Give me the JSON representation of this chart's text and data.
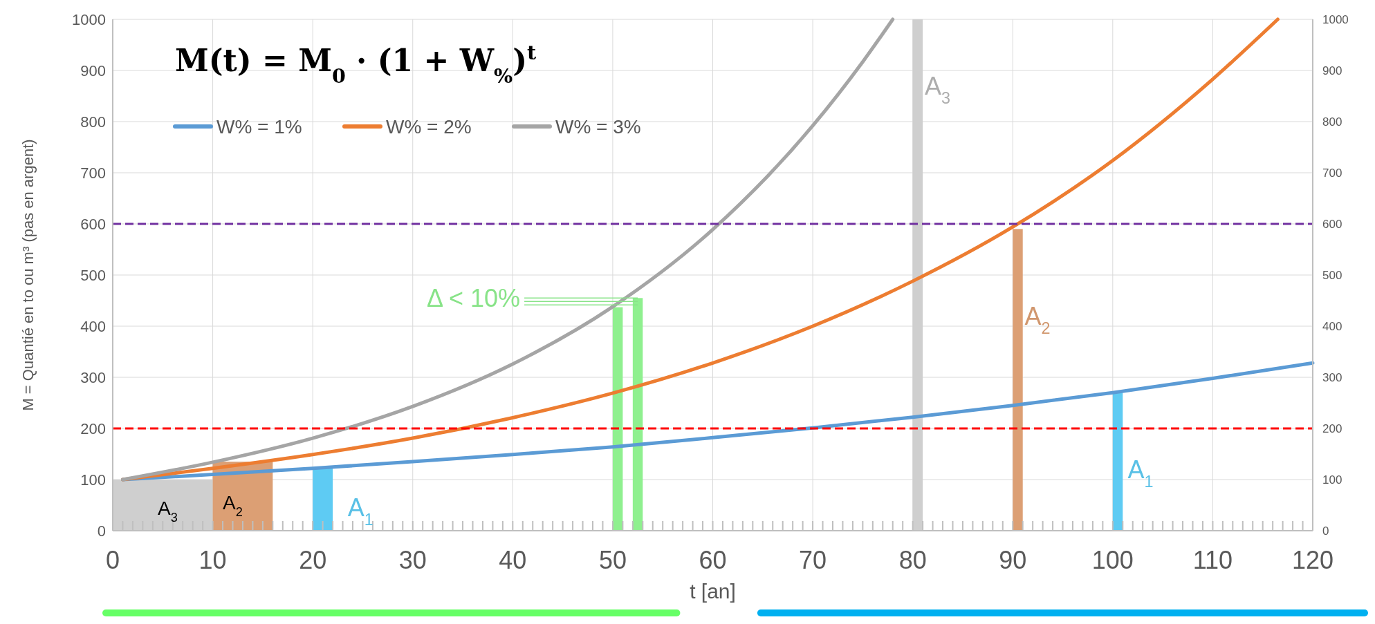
{
  "chart_data": {
    "type": "line",
    "xlabel": "t [an]",
    "ylabel": "M = Quantié en to ou m³ (pas en argent)",
    "xlim": [
      0,
      120
    ],
    "ylim": [
      0,
      1000
    ],
    "y2lim": [
      0,
      1000
    ],
    "xticks": [
      0,
      10,
      20,
      30,
      40,
      50,
      60,
      70,
      80,
      90,
      100,
      110,
      120,
      {
        "value": 1,
        "label": null
      },
      {
        "value": 2,
        "label": null
      },
      {
        "value": 3,
        "label": null
      },
      {
        "value": 4,
        "label": null
      },
      {
        "value": 5,
        "label": null
      },
      {
        "value": 6,
        "label": null
      },
      {
        "value": 7,
        "label": null
      },
      {
        "value": 8,
        "label": null
      },
      {
        "value": 9,
        "label": null
      },
      {
        "value": 11,
        "label": null
      },
      {
        "value": 12,
        "label": null
      },
      {
        "value": 13,
        "label": null
      },
      {
        "value": 14,
        "label": null
      },
      {
        "value": 15,
        "label": null
      },
      {
        "value": 16,
        "label": null
      },
      {
        "value": 17,
        "label": null
      },
      {
        "value": 18,
        "label": null
      },
      {
        "value": 19,
        "label": null
      },
      {
        "value": 21,
        "label": null
      },
      {
        "value": 22,
        "label": null
      },
      {
        "value": 23,
        "label": null
      },
      {
        "value": 24,
        "label": null
      },
      {
        "value": 25,
        "label": null
      },
      {
        "value": 26,
        "label": null
      },
      {
        "value": 27,
        "label": null
      },
      {
        "value": 28,
        "label": null
      },
      {
        "value": 29,
        "label": null
      },
      {
        "value": 31,
        "label": null
      },
      {
        "value": 32,
        "label": null
      },
      {
        "value": 33,
        "label": null
      },
      {
        "value": 34,
        "label": null
      },
      {
        "value": 35,
        "label": null
      },
      {
        "value": 36,
        "label": null
      },
      {
        "value": 37,
        "label": null
      },
      {
        "value": 38,
        "label": null
      },
      {
        "value": 39,
        "label": null
      },
      {
        "value": 41,
        "label": null
      },
      {
        "value": 42,
        "label": null
      },
      {
        "value": 43,
        "label": null
      },
      {
        "value": 44,
        "label": null
      },
      {
        "value": 45,
        "label": null
      },
      {
        "value": 46,
        "label": null
      },
      {
        "value": 47,
        "label": null
      },
      {
        "value": 48,
        "label": null
      },
      {
        "value": 49,
        "label": null
      },
      {
        "value": 51,
        "label": null
      },
      {
        "value": 52,
        "label": null
      },
      {
        "value": 53,
        "label": null
      },
      {
        "value": 54,
        "label": null
      },
      {
        "value": 55,
        "label": null
      },
      {
        "value": 56,
        "label": null
      },
      {
        "value": 57,
        "label": null
      },
      {
        "value": 58,
        "label": null
      },
      {
        "value": 59,
        "label": null
      },
      {
        "value": 61,
        "label": null
      },
      {
        "value": 62,
        "label": null
      },
      {
        "value": 63,
        "label": null
      },
      {
        "value": 64,
        "label": null
      },
      {
        "value": 65,
        "label": null
      },
      {
        "value": 66,
        "label": null
      },
      {
        "value": 67,
        "label": null
      },
      {
        "value": 68,
        "label": null
      },
      {
        "value": 69,
        "label": null
      },
      {
        "value": 71,
        "label": null
      },
      {
        "value": 72,
        "label": null
      },
      {
        "value": 73,
        "label": null
      },
      {
        "value": 74,
        "label": null
      },
      {
        "value": 75,
        "label": null
      },
      {
        "value": 76,
        "label": null
      },
      {
        "value": 77,
        "label": null
      },
      {
        "value": 78,
        "label": null
      },
      {
        "value": 79,
        "label": null
      },
      {
        "value": 81,
        "label": null
      },
      {
        "value": 82,
        "label": null
      },
      {
        "value": 83,
        "label": null
      },
      {
        "value": 84,
        "label": null
      },
      {
        "value": 85,
        "label": null
      },
      {
        "value": 86,
        "label": null
      },
      {
        "value": 87,
        "label": null
      },
      {
        "value": 88,
        "label": null
      },
      {
        "value": 89,
        "label": null
      },
      {
        "value": 91,
        "label": null
      },
      {
        "value": 92,
        "label": null
      },
      {
        "value": 93,
        "label": null
      },
      {
        "value": 94,
        "label": null
      },
      {
        "value": 95,
        "label": null
      },
      {
        "value": 96,
        "label": null
      },
      {
        "value": 97,
        "label": null
      },
      {
        "value": 98,
        "label": null
      },
      {
        "value": 99,
        "label": null
      },
      {
        "value": 101,
        "label": null
      },
      {
        "value": 102,
        "label": null
      },
      {
        "value": 103,
        "label": null
      },
      {
        "value": 104,
        "label": null
      },
      {
        "value": 105,
        "label": null
      },
      {
        "value": 106,
        "label": null
      },
      {
        "value": 107,
        "label": null
      },
      {
        "value": 108,
        "label": null
      },
      {
        "value": 109,
        "label": null
      },
      {
        "value": 111,
        "label": null
      },
      {
        "value": 112,
        "label": null
      },
      {
        "value": 113,
        "label": null
      },
      {
        "value": 114,
        "label": null
      },
      {
        "value": 115,
        "label": null
      },
      {
        "value": 116,
        "label": null
      },
      {
        "value": 117,
        "label": null
      },
      {
        "value": 118,
        "label": null
      },
      {
        "value": 119,
        "label": null
      }
    ],
    "yticks": [
      0,
      100,
      200,
      300,
      400,
      500,
      600,
      700,
      800,
      900,
      1000
    ],
    "y2ticks": [
      0,
      100,
      200,
      300,
      400,
      500,
      600,
      700,
      800,
      900,
      1000
    ],
    "grid": true,
    "legend": "top left",
    "series": [
      {
        "type": "histogram",
        "color": "#cfcfcf",
        "bins": [
          0,
          10,
          80,
          81
        ],
        "values": [
          100,
          null,
          1000
        ]
      },
      {
        "type": "histogram",
        "color": "#dc9f74",
        "bins": [
          10,
          16,
          90,
          91
        ],
        "values": [
          135,
          null,
          590
        ]
      },
      {
        "type": "histogram",
        "color": "#5ecbf3",
        "bins": [
          20,
          22,
          100,
          101
        ],
        "values": [
          122,
          null,
          270
        ]
      },
      {
        "type": "histogram",
        "color": "#8ff08f",
        "bins": [
          50,
          51,
          52,
          53
        ],
        "values": [
          437,
          null,
          455
        ]
      },
      {
        "name": "W% = 1%",
        "color": "#5b9bd5",
        "x": [
          1,
          10,
          20,
          30,
          40,
          50,
          60,
          70,
          80,
          90,
          100,
          110,
          120
        ],
        "values": [
          100,
          110,
          122,
          135,
          149,
          164,
          182,
          201,
          222,
          245,
          270,
          298,
          328
        ]
      },
      {
        "name": "W% = 2%",
        "color": "#ed7d31",
        "x": [
          1,
          10,
          20,
          30,
          40,
          50,
          60,
          70,
          80,
          90,
          100,
          110,
          116.5
        ],
        "values": [
          100,
          122,
          149,
          181,
          221,
          269,
          328,
          400,
          488,
          594,
          724,
          883,
          1000
        ]
      },
      {
        "name": "W% = 3%",
        "color": "#a5a5a5",
        "x": [
          1,
          10,
          20,
          30,
          40,
          50,
          60,
          70,
          75,
          78
        ],
        "values": [
          100,
          134,
          181,
          243,
          326,
          438,
          589,
          792,
          917,
          1000
        ]
      }
    ],
    "ref_lines": [
      {
        "axis": "y",
        "value": 600,
        "color": "#7030a0",
        "line_style": "dashed"
      },
      {
        "axis": "y",
        "value": 200,
        "color": "#ff0000",
        "line_style": "dashed"
      }
    ],
    "annotations": [
      "M(t) = M$_{0}$ · (1 + W$_{%}$)$^{t}$",
      "A$_{3}$",
      "A$_{2}$",
      "A$_{1}$",
      {
        "text": "Δ < 10%",
        "x": 52.5,
        "y": 455
      },
      "A$_{3}$",
      "A$_{2}$",
      "A$_{1}$"
    ]
  }
}
